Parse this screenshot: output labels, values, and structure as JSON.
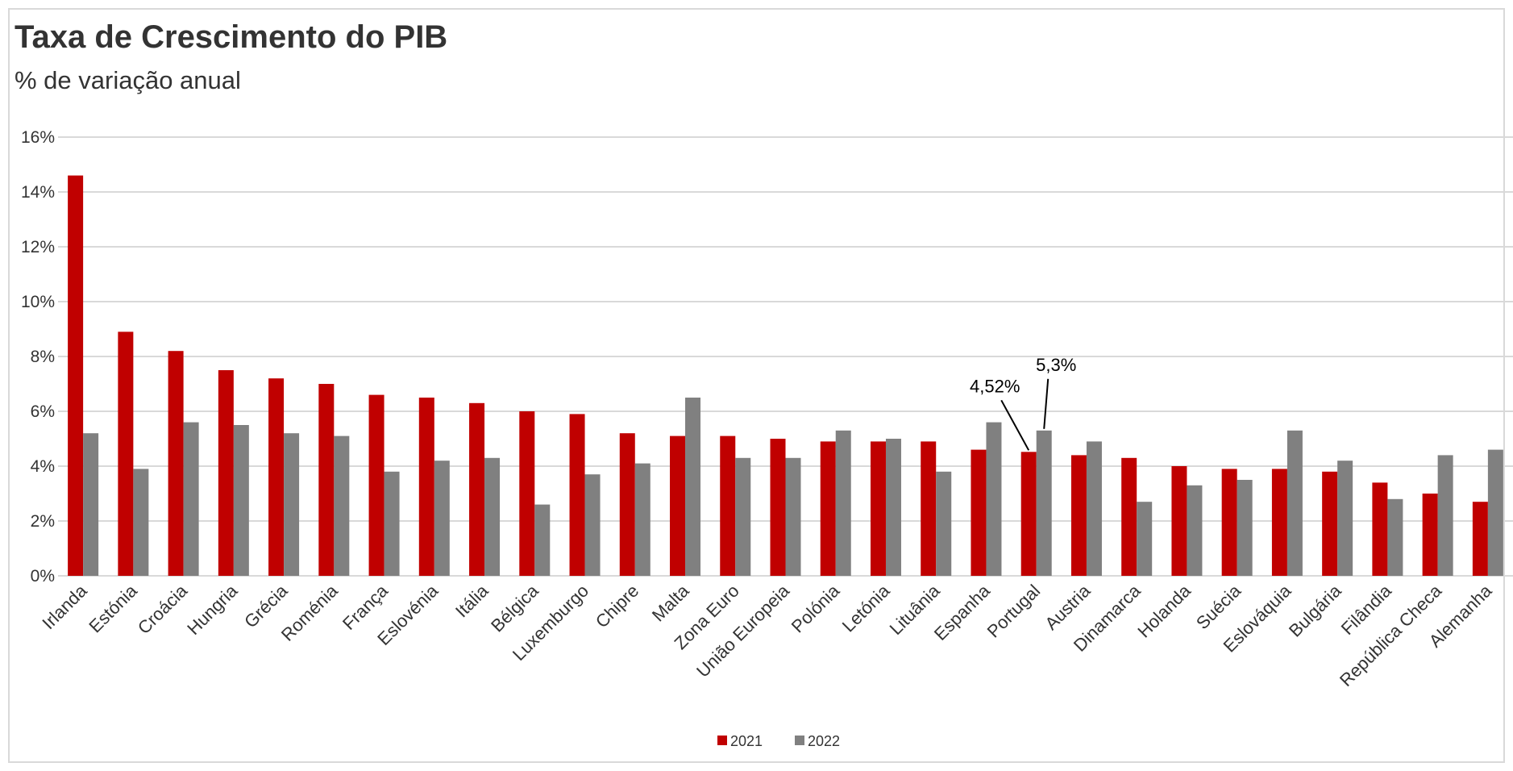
{
  "chart_data": {
    "type": "bar",
    "title": "Taxa de Crescimento do PIB",
    "subtitle": "% de variação anual",
    "xlabel": "",
    "ylabel": "",
    "ylim": [
      0,
      16
    ],
    "yticks": [
      0,
      2,
      4,
      6,
      8,
      10,
      12,
      14,
      16
    ],
    "ytick_labels": [
      "0%",
      "2%",
      "4%",
      "6%",
      "8%",
      "10%",
      "12%",
      "14%",
      "16%"
    ],
    "grid": true,
    "legend_position": "bottom",
    "categories": [
      "Irlanda",
      "Estónia",
      "Croácia",
      "Hungria",
      "Grécia",
      "Roménia",
      "França",
      "Eslovénia",
      "Itália",
      "Bélgica",
      "Luxemburgo",
      "Chipre",
      "Malta",
      "Zona Euro",
      "União Europeia",
      "Polónia",
      "Letónia",
      "Lituânia",
      "Espanha",
      "Portugal",
      "Austria",
      "Dinamarca",
      "Holanda",
      "Suécia",
      "Eslováquia",
      "Bulgária",
      "Filândia",
      "República Checa",
      "Alemanha"
    ],
    "series": [
      {
        "name": "2021",
        "color": "#c00000",
        "values": [
          14.6,
          8.9,
          8.2,
          7.5,
          7.2,
          7.0,
          6.6,
          6.5,
          6.3,
          6.0,
          5.9,
          5.2,
          5.1,
          5.1,
          5.0,
          4.9,
          4.9,
          4.9,
          4.6,
          4.52,
          4.4,
          4.3,
          4.0,
          3.9,
          3.9,
          3.8,
          3.4,
          3.0,
          2.7
        ]
      },
      {
        "name": "2022",
        "color": "#808080",
        "values": [
          5.2,
          3.9,
          5.6,
          5.5,
          5.2,
          5.1,
          3.8,
          4.2,
          4.3,
          2.6,
          3.7,
          4.1,
          6.5,
          4.3,
          4.3,
          5.3,
          5.0,
          3.8,
          5.6,
          5.3,
          4.9,
          2.7,
          3.3,
          3.5,
          5.3,
          4.2,
          2.8,
          4.4,
          4.6
        ]
      }
    ],
    "annotations": [
      {
        "text": "4,52%",
        "category": "Portugal",
        "series": "2021"
      },
      {
        "text": "5,3%",
        "category": "Portugal",
        "series": "2022"
      }
    ]
  }
}
